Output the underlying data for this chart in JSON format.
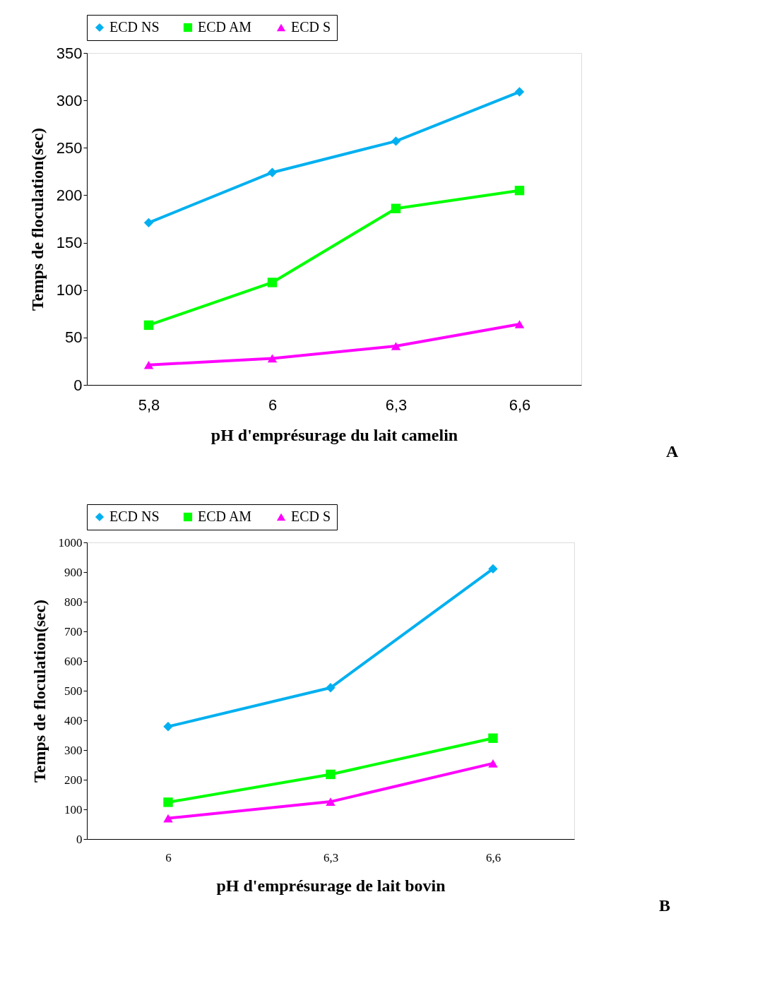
{
  "chart_data": [
    {
      "type": "line",
      "xlabel": "pH d'emprésurage du lait camelin",
      "ylabel": "Temps de floculation(sec)",
      "categories": [
        "5,8",
        "6",
        "6,3",
        "6,6"
      ],
      "ylim": [
        0,
        350
      ],
      "yticks": [
        0,
        50,
        100,
        150,
        200,
        250,
        300,
        350
      ],
      "grid": false,
      "legend": "top",
      "annotations": [
        "A"
      ],
      "series": [
        {
          "name": "ECD NS",
          "color": "#00b0f0",
          "marker": "diamond",
          "values": [
            171,
            224,
            257,
            309
          ]
        },
        {
          "name": "ECD AM",
          "color": "#00ff00",
          "marker": "square",
          "values": [
            63,
            108,
            186,
            205
          ]
        },
        {
          "name": "ECD S",
          "color": "#ff00ff",
          "marker": "triangle",
          "values": [
            21,
            28,
            41,
            64
          ]
        }
      ]
    },
    {
      "type": "line",
      "xlabel": "pH d'emprésurage de lait bovin",
      "ylabel": "Temps de floculation(sec)",
      "categories": [
        "6",
        "6,3",
        "6,6"
      ],
      "ylim": [
        0,
        1000
      ],
      "yticks": [
        0,
        100,
        200,
        300,
        400,
        500,
        600,
        700,
        800,
        900,
        1000
      ],
      "grid": false,
      "legend": "top",
      "annotations": [
        "B"
      ],
      "series": [
        {
          "name": "ECD NS",
          "color": "#00b0f0",
          "marker": "diamond",
          "values": [
            379,
            510,
            911
          ]
        },
        {
          "name": "ECD AM",
          "color": "#00ff00",
          "marker": "square",
          "values": [
            124,
            218,
            340
          ]
        },
        {
          "name": "ECD S",
          "color": "#ff00ff",
          "marker": "triangle",
          "values": [
            70,
            126,
            255
          ]
        }
      ]
    }
  ]
}
